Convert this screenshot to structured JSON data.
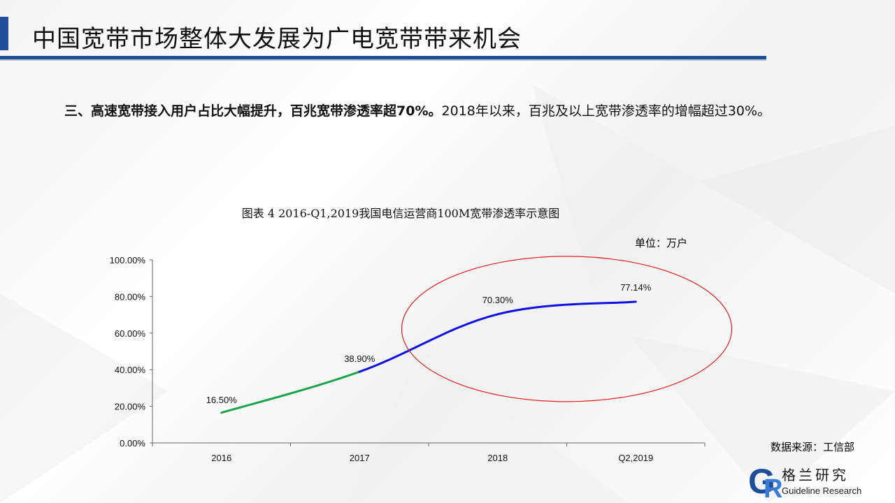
{
  "header": {
    "title": "中国宽带市场整体大发展为广电宽带带来机会"
  },
  "paragraph": {
    "bold_part": "三、高速宽带接入用户占比大幅提升，百兆宽带渗透率超70%。",
    "normal_part": "2018年以来，百兆及以上宽带渗透率的增幅超过30%。"
  },
  "figure": {
    "caption": "图表 4 2016-Q1,2019我国电信运营商100M宽带渗透率示意图",
    "unit": "单位：万户",
    "source": "数据来源：工信部"
  },
  "logo": {
    "name": "格兰研究",
    "sub": "Guideline Research",
    "mark": "GR"
  },
  "colors": {
    "accent": "#1f4e9a",
    "line_early": "#1aa34a",
    "line_late": "#1010e0",
    "highlight_ellipse": "#e02020"
  },
  "chart_data": {
    "type": "line",
    "categories": [
      "2016",
      "2017",
      "2018",
      "Q2,2019"
    ],
    "values": [
      16.5,
      38.9,
      70.3,
      77.14
    ],
    "data_labels": [
      "16.50%",
      "38.90%",
      "70.30%",
      "77.14%"
    ],
    "y_ticks": [
      "0.00%",
      "20.00%",
      "40.00%",
      "60.00%",
      "80.00%",
      "100.00%"
    ],
    "ylim": [
      0,
      100
    ],
    "grid": false,
    "legend": "none",
    "highlight": "ellipse around 2018 and Q2,2019 points"
  }
}
